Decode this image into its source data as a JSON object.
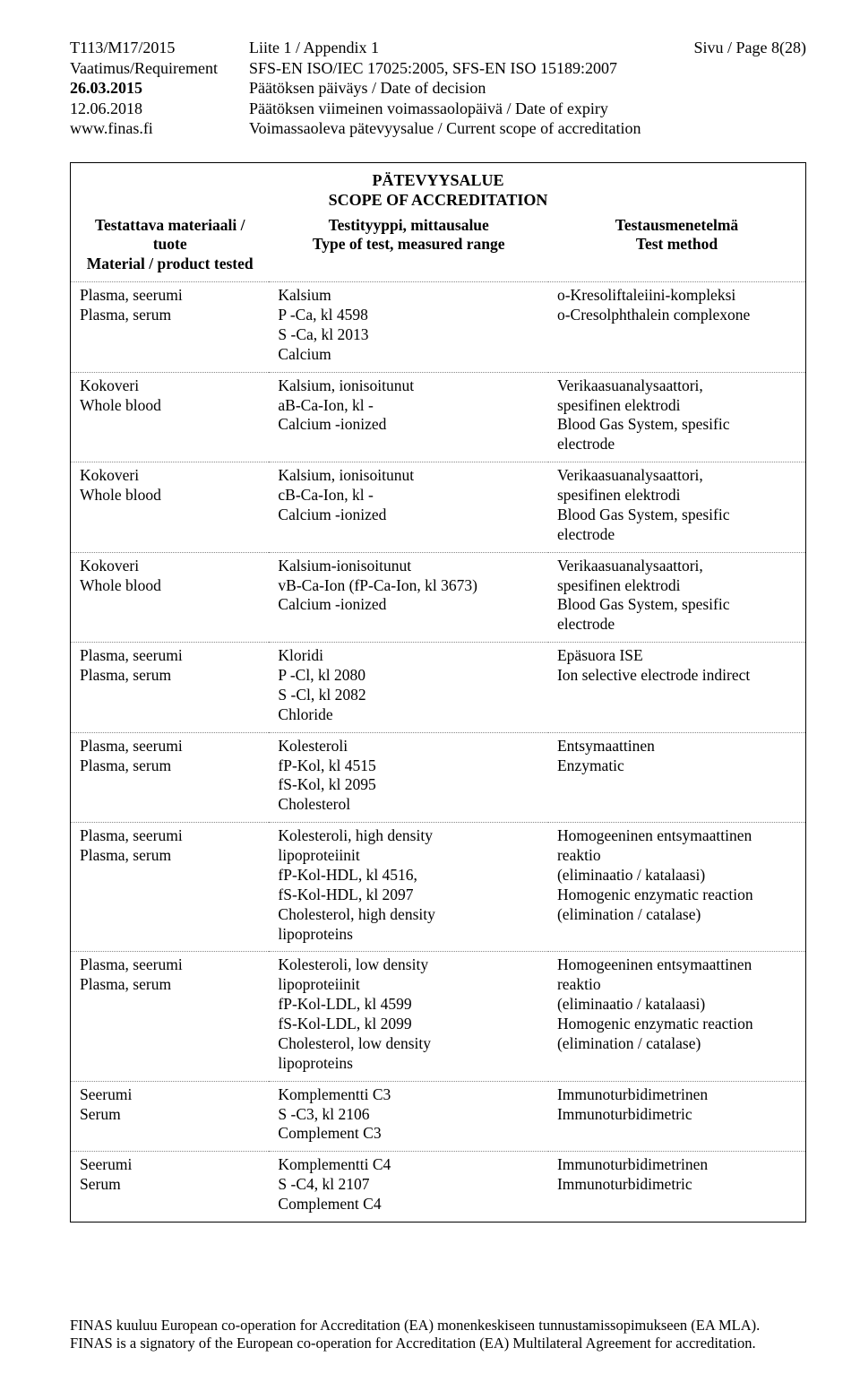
{
  "header": {
    "code": "T113/M17/2015",
    "req_label": "Vaatimus/Requirement",
    "date1": "26.03.2015",
    "date2": "12.06.2018",
    "site": "www.finas.fi",
    "appendix": "Liite 1 / Appendix 1",
    "req_text": "SFS-EN ISO/IEC 17025:2005, SFS-EN ISO 15189:2007",
    "date1_text": "Päätöksen päiväys / Date of decision",
    "date2_text": "Päätöksen viimeinen voimassaolopäivä / Date of expiry",
    "site_text": "Voimassaoleva pätevyysalue / Current scope of accreditation",
    "page": "Sivu / Page 8(28)"
  },
  "table": {
    "title1": "PÄTEVYYSALUE",
    "title2": "SCOPE OF ACCREDITATION",
    "head": {
      "c1a": "Testattava materiaali / tuote",
      "c1b": "Material / product tested",
      "c2a": "Testityyppi, mittausalue",
      "c2b": "Type of test, measured range",
      "c3a": "Testausmenetelmä",
      "c3b": "Test method"
    },
    "rows": [
      {
        "c1": "Plasma, seerumi\nPlasma, serum",
        "c2": "Kalsium\nP -Ca, kl 4598\nS -Ca, kl 2013\nCalcium",
        "c3": "o-Kresoliftaleiini-kompleksi\no-Cresolphthalein complexone"
      },
      {
        "c1": "Kokoveri\nWhole blood",
        "c2": "Kalsium, ionisoitunut\naB-Ca-Ion, kl -\nCalcium -ionized",
        "c3": "Verikaasuanalysaattori,\nspesifinen elektrodi\nBlood Gas System, spesific\nelectrode"
      },
      {
        "c1": "Kokoveri\nWhole blood",
        "c2": "Kalsium, ionisoitunut\ncB-Ca-Ion, kl -\nCalcium -ionized",
        "c3": "Verikaasuanalysaattori,\nspesifinen elektrodi\nBlood Gas System, spesific\nelectrode"
      },
      {
        "c1": "Kokoveri\nWhole blood",
        "c2": "Kalsium-ionisoitunut\nvB-Ca-Ion (fP-Ca-Ion, kl 3673)\nCalcium -ionized",
        "c3": "Verikaasuanalysaattori,\nspesifinen elektrodi\nBlood Gas System, spesific\nelectrode"
      },
      {
        "c1": "Plasma, seerumi\nPlasma, serum",
        "c2": "Kloridi\nP -Cl, kl 2080\nS -Cl, kl 2082\nChloride",
        "c3": "Epäsuora ISE\nIon selective electrode indirect"
      },
      {
        "c1": "Plasma, seerumi\nPlasma, serum",
        "c2": "Kolesteroli\nfP-Kol, kl 4515\nfS-Kol, kl 2095\nCholesterol",
        "c3": "Entsymaattinen\nEnzymatic"
      },
      {
        "c1": "Plasma, seerumi\nPlasma, serum",
        "c2": "Kolesteroli, high density\nlipoproteiinit\nfP-Kol-HDL, kl 4516,\nfS-Kol-HDL, kl 2097\nCholesterol, high density\nlipoproteins",
        "c3": "Homogeeninen entsymaattinen\nreaktio\n(eliminaatio / katalaasi)\nHomogenic enzymatic reaction\n(elimination / catalase)"
      },
      {
        "c1": "Plasma, seerumi\nPlasma, serum",
        "c2": "Kolesteroli, low density\nlipoproteiinit\nfP-Kol-LDL, kl 4599\nfS-Kol-LDL, kl 2099\nCholesterol, low density\nlipoproteins",
        "c3": "Homogeeninen entsymaattinen\nreaktio\n(eliminaatio / katalaasi)\nHomogenic enzymatic reaction\n(elimination / catalase)"
      },
      {
        "c1": "Seerumi\nSerum",
        "c2": "Komplementti C3\nS -C3, kl 2106\nComplement C3",
        "c3": "Immunoturbidimetrinen\nImmunoturbidimetric"
      },
      {
        "c1": "Seerumi\nSerum",
        "c2": "Komplementti C4\nS -C4, kl 2107\nComplement C4",
        "c3": "Immunoturbidimetrinen\nImmunoturbidimetric"
      }
    ]
  },
  "footer": {
    "l1": "FINAS kuuluu European co-operation for Accreditation (EA) monenkeskiseen tunnustamissopimukseen (EA MLA).",
    "l2": "FINAS is a signatory of the European co-operation for Accreditation (EA) Multilateral Agreement for accreditation."
  }
}
